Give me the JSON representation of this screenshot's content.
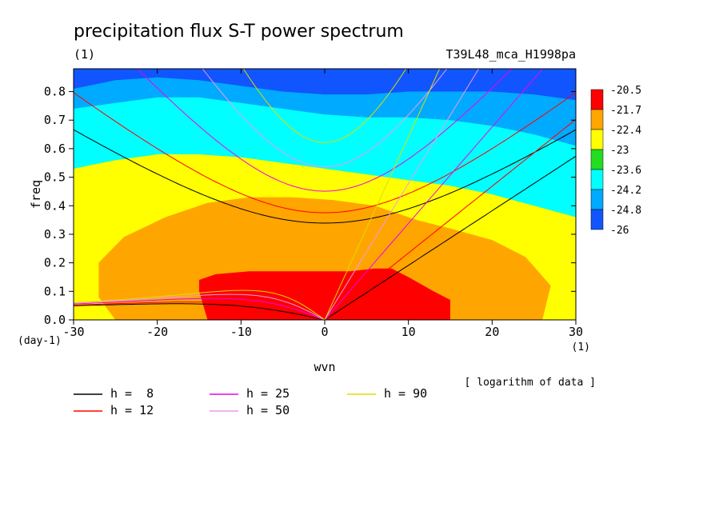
{
  "chart_data": {
    "type": "heatmap",
    "title": "precipitation flux S-T power spectrum",
    "subtitle_left": "(1)",
    "subtitle_right": "T39L48_mca_H1998pa",
    "xlabel": "wvn",
    "ylabel": "freq",
    "x_unit": "(1)",
    "y_unit": "(day-1)",
    "note": "[ logarithm of data ]",
    "xlim": [
      -30,
      30
    ],
    "ylim": [
      0,
      0.88
    ],
    "x_ticks": [
      -30,
      -20,
      -10,
      0,
      10,
      20,
      30
    ],
    "y_ticks": [
      0.0,
      0.1,
      0.2,
      0.3,
      0.4,
      0.5,
      0.6,
      0.7,
      0.8
    ],
    "x_tick_labels": [
      "-30",
      "-20",
      "-10",
      "0",
      "10",
      "20",
      "30"
    ],
    "y_tick_labels": [
      "0.0",
      "0.1",
      "0.2",
      "0.3",
      "0.4",
      "0.5",
      "0.6",
      "0.7",
      "0.8"
    ],
    "colorbar": {
      "labels": [
        "-20.5",
        "-21.7",
        "-22.4",
        "-23",
        "-23.6",
        "-24.2",
        "-24.8",
        "-26"
      ],
      "colors": [
        "#ff0000",
        "#ffa500",
        "#ffff00",
        "#22dd22",
        "#00ffff",
        "#00aaff",
        "#1155ff"
      ]
    },
    "contour_fills": [
      {
        "level": -24.8,
        "color": "#00aaff",
        "boundary": [
          [
            -30,
            0.81
          ],
          [
            -25,
            0.84
          ],
          [
            -20,
            0.85
          ],
          [
            -15,
            0.84
          ],
          [
            -10,
            0.82
          ],
          [
            -5,
            0.8
          ],
          [
            0,
            0.79
          ],
          [
            5,
            0.79
          ],
          [
            10,
            0.8
          ],
          [
            15,
            0.8
          ],
          [
            20,
            0.8
          ],
          [
            25,
            0.79
          ],
          [
            30,
            0.77
          ]
        ]
      },
      {
        "level": -24.2,
        "color": "#00ffff",
        "boundary": [
          [
            -30,
            0.74
          ],
          [
            -25,
            0.76
          ],
          [
            -20,
            0.78
          ],
          [
            -15,
            0.78
          ],
          [
            -10,
            0.76
          ],
          [
            -5,
            0.74
          ],
          [
            0,
            0.72
          ],
          [
            5,
            0.71
          ],
          [
            10,
            0.71
          ],
          [
            15,
            0.7
          ],
          [
            20,
            0.68
          ],
          [
            25,
            0.65
          ],
          [
            30,
            0.61
          ]
        ]
      },
      {
        "level": -23.6,
        "color": "#22dd22",
        "boundary": [
          [
            -30,
            0.53
          ],
          [
            -25,
            0.56
          ],
          [
            -20,
            0.58
          ],
          [
            -15,
            0.58
          ],
          [
            -10,
            0.57
          ],
          [
            -5,
            0.55
          ],
          [
            0,
            0.53
          ],
          [
            5,
            0.51
          ],
          [
            10,
            0.49
          ],
          [
            15,
            0.47
          ],
          [
            20,
            0.44
          ],
          [
            25,
            0.4
          ],
          [
            30,
            0.36
          ]
        ]
      },
      {
        "level": -23,
        "color": "#ffff00",
        "boundary": [
          [
            -30,
            0.0
          ],
          [
            -30,
            0.53
          ],
          [
            -25,
            0.56
          ],
          [
            -20,
            0.58
          ],
          [
            -15,
            0.58
          ],
          [
            -10,
            0.57
          ],
          [
            -5,
            0.55
          ],
          [
            0,
            0.53
          ],
          [
            5,
            0.51
          ],
          [
            10,
            0.49
          ],
          [
            15,
            0.47
          ],
          [
            20,
            0.44
          ],
          [
            25,
            0.4
          ],
          [
            30,
            0.36
          ],
          [
            30,
            0.0
          ]
        ]
      },
      {
        "level": -22.4,
        "color": "#ffa500",
        "boundary": [
          [
            -25,
            0.0
          ],
          [
            -27,
            0.08
          ],
          [
            -27,
            0.2
          ],
          [
            -24,
            0.29
          ],
          [
            -19,
            0.36
          ],
          [
            -14,
            0.41
          ],
          [
            -9,
            0.43
          ],
          [
            -4,
            0.43
          ],
          [
            1,
            0.42
          ],
          [
            6,
            0.4
          ],
          [
            11,
            0.35
          ],
          [
            15,
            0.32
          ],
          [
            20,
            0.28
          ],
          [
            24,
            0.22
          ],
          [
            27,
            0.12
          ],
          [
            26,
            0.0
          ]
        ]
      },
      {
        "level": -21.7,
        "color": "#ff0000",
        "boundary": [
          [
            -14,
            0.0
          ],
          [
            -15,
            0.1
          ],
          [
            -15,
            0.14
          ],
          [
            -13,
            0.16
          ],
          [
            -9,
            0.17
          ],
          [
            -5,
            0.17
          ],
          [
            -1,
            0.17
          ],
          [
            3,
            0.17
          ],
          [
            6,
            0.18
          ],
          [
            8,
            0.18
          ],
          [
            10,
            0.15
          ],
          [
            13,
            0.1
          ],
          [
            15,
            0.07
          ],
          [
            15,
            0.0
          ]
        ]
      }
    ],
    "series": [
      {
        "name": "h =  8",
        "equivalent_depth": 8,
        "color": "#000000"
      },
      {
        "name": "h = 12",
        "equivalent_depth": 12,
        "color": "#ff0000"
      },
      {
        "name": "h = 25",
        "equivalent_depth": 25,
        "color": "#ee00ee"
      },
      {
        "name": "h = 50",
        "equivalent_depth": 50,
        "color": "#ee99ee"
      },
      {
        "name": "h = 90",
        "equivalent_depth": 90,
        "color": "#dddd00"
      }
    ]
  }
}
